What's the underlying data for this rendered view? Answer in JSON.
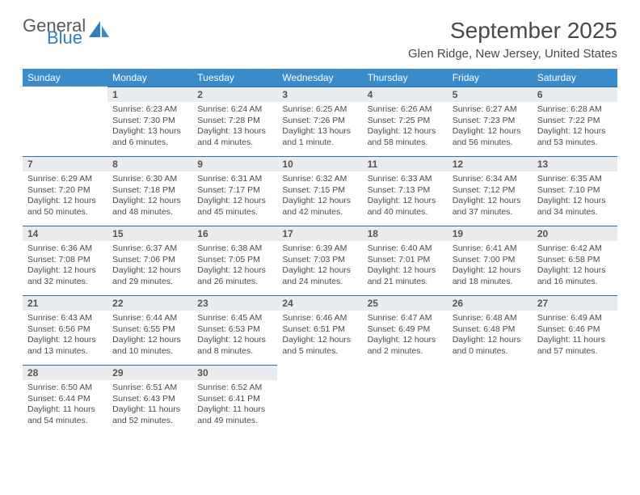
{
  "logo": {
    "word1": "General",
    "word2": "Blue"
  },
  "title": "September 2025",
  "location": "Glen Ridge, New Jersey, United States",
  "header_bg": "#3b8bca",
  "daynum_bg": "#e9ecef",
  "daynum_border": "#2f6fa8",
  "weekdays": [
    "Sunday",
    "Monday",
    "Tuesday",
    "Wednesday",
    "Thursday",
    "Friday",
    "Saturday"
  ],
  "weeks": [
    [
      null,
      {
        "n": "1",
        "sr": "Sunrise: 6:23 AM",
        "ss": "Sunset: 7:30 PM",
        "dl": "Daylight: 13 hours and 6 minutes."
      },
      {
        "n": "2",
        "sr": "Sunrise: 6:24 AM",
        "ss": "Sunset: 7:28 PM",
        "dl": "Daylight: 13 hours and 4 minutes."
      },
      {
        "n": "3",
        "sr": "Sunrise: 6:25 AM",
        "ss": "Sunset: 7:26 PM",
        "dl": "Daylight: 13 hours and 1 minute."
      },
      {
        "n": "4",
        "sr": "Sunrise: 6:26 AM",
        "ss": "Sunset: 7:25 PM",
        "dl": "Daylight: 12 hours and 58 minutes."
      },
      {
        "n": "5",
        "sr": "Sunrise: 6:27 AM",
        "ss": "Sunset: 7:23 PM",
        "dl": "Daylight: 12 hours and 56 minutes."
      },
      {
        "n": "6",
        "sr": "Sunrise: 6:28 AM",
        "ss": "Sunset: 7:22 PM",
        "dl": "Daylight: 12 hours and 53 minutes."
      }
    ],
    [
      {
        "n": "7",
        "sr": "Sunrise: 6:29 AM",
        "ss": "Sunset: 7:20 PM",
        "dl": "Daylight: 12 hours and 50 minutes."
      },
      {
        "n": "8",
        "sr": "Sunrise: 6:30 AM",
        "ss": "Sunset: 7:18 PM",
        "dl": "Daylight: 12 hours and 48 minutes."
      },
      {
        "n": "9",
        "sr": "Sunrise: 6:31 AM",
        "ss": "Sunset: 7:17 PM",
        "dl": "Daylight: 12 hours and 45 minutes."
      },
      {
        "n": "10",
        "sr": "Sunrise: 6:32 AM",
        "ss": "Sunset: 7:15 PM",
        "dl": "Daylight: 12 hours and 42 minutes."
      },
      {
        "n": "11",
        "sr": "Sunrise: 6:33 AM",
        "ss": "Sunset: 7:13 PM",
        "dl": "Daylight: 12 hours and 40 minutes."
      },
      {
        "n": "12",
        "sr": "Sunrise: 6:34 AM",
        "ss": "Sunset: 7:12 PM",
        "dl": "Daylight: 12 hours and 37 minutes."
      },
      {
        "n": "13",
        "sr": "Sunrise: 6:35 AM",
        "ss": "Sunset: 7:10 PM",
        "dl": "Daylight: 12 hours and 34 minutes."
      }
    ],
    [
      {
        "n": "14",
        "sr": "Sunrise: 6:36 AM",
        "ss": "Sunset: 7:08 PM",
        "dl": "Daylight: 12 hours and 32 minutes."
      },
      {
        "n": "15",
        "sr": "Sunrise: 6:37 AM",
        "ss": "Sunset: 7:06 PM",
        "dl": "Daylight: 12 hours and 29 minutes."
      },
      {
        "n": "16",
        "sr": "Sunrise: 6:38 AM",
        "ss": "Sunset: 7:05 PM",
        "dl": "Daylight: 12 hours and 26 minutes."
      },
      {
        "n": "17",
        "sr": "Sunrise: 6:39 AM",
        "ss": "Sunset: 7:03 PM",
        "dl": "Daylight: 12 hours and 24 minutes."
      },
      {
        "n": "18",
        "sr": "Sunrise: 6:40 AM",
        "ss": "Sunset: 7:01 PM",
        "dl": "Daylight: 12 hours and 21 minutes."
      },
      {
        "n": "19",
        "sr": "Sunrise: 6:41 AM",
        "ss": "Sunset: 7:00 PM",
        "dl": "Daylight: 12 hours and 18 minutes."
      },
      {
        "n": "20",
        "sr": "Sunrise: 6:42 AM",
        "ss": "Sunset: 6:58 PM",
        "dl": "Daylight: 12 hours and 16 minutes."
      }
    ],
    [
      {
        "n": "21",
        "sr": "Sunrise: 6:43 AM",
        "ss": "Sunset: 6:56 PM",
        "dl": "Daylight: 12 hours and 13 minutes."
      },
      {
        "n": "22",
        "sr": "Sunrise: 6:44 AM",
        "ss": "Sunset: 6:55 PM",
        "dl": "Daylight: 12 hours and 10 minutes."
      },
      {
        "n": "23",
        "sr": "Sunrise: 6:45 AM",
        "ss": "Sunset: 6:53 PM",
        "dl": "Daylight: 12 hours and 8 minutes."
      },
      {
        "n": "24",
        "sr": "Sunrise: 6:46 AM",
        "ss": "Sunset: 6:51 PM",
        "dl": "Daylight: 12 hours and 5 minutes."
      },
      {
        "n": "25",
        "sr": "Sunrise: 6:47 AM",
        "ss": "Sunset: 6:49 PM",
        "dl": "Daylight: 12 hours and 2 minutes."
      },
      {
        "n": "26",
        "sr": "Sunrise: 6:48 AM",
        "ss": "Sunset: 6:48 PM",
        "dl": "Daylight: 12 hours and 0 minutes."
      },
      {
        "n": "27",
        "sr": "Sunrise: 6:49 AM",
        "ss": "Sunset: 6:46 PM",
        "dl": "Daylight: 11 hours and 57 minutes."
      }
    ],
    [
      {
        "n": "28",
        "sr": "Sunrise: 6:50 AM",
        "ss": "Sunset: 6:44 PM",
        "dl": "Daylight: 11 hours and 54 minutes."
      },
      {
        "n": "29",
        "sr": "Sunrise: 6:51 AM",
        "ss": "Sunset: 6:43 PM",
        "dl": "Daylight: 11 hours and 52 minutes."
      },
      {
        "n": "30",
        "sr": "Sunrise: 6:52 AM",
        "ss": "Sunset: 6:41 PM",
        "dl": "Daylight: 11 hours and 49 minutes."
      },
      null,
      null,
      null,
      null
    ]
  ]
}
